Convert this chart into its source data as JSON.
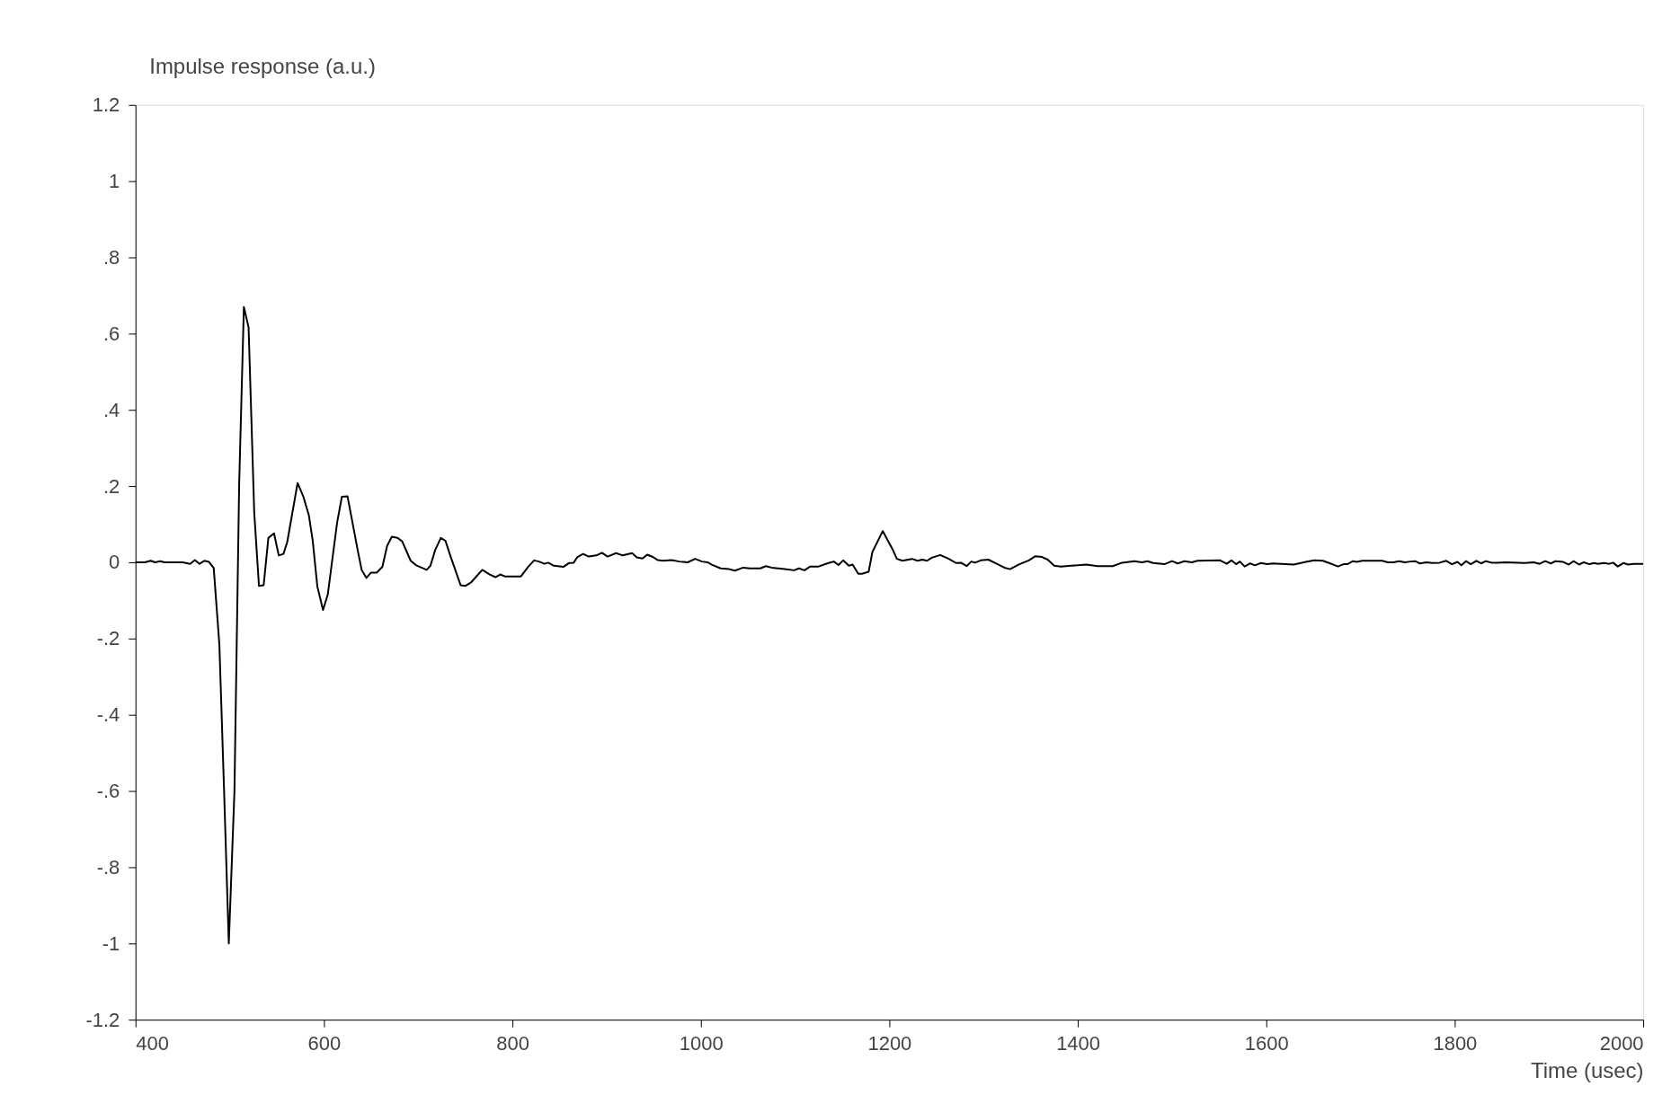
{
  "chart_data": {
    "type": "line",
    "xlabel": "Time (usec)",
    "ylabel": "Impulse response (a.u.)",
    "x": [
      400,
      410,
      416,
      421,
      426,
      431,
      450,
      458,
      463,
      468,
      473,
      478,
      483,
      489,
      494,
      499,
      505,
      510,
      515,
      520,
      526,
      531,
      536,
      541,
      547,
      552,
      557,
      561,
      572,
      578,
      584,
      588,
      593,
      599,
      604,
      614,
      619,
      625,
      636,
      640,
      645,
      650,
      656,
      662,
      667,
      672,
      678,
      683,
      692,
      698,
      709,
      713,
      718,
      724,
      729,
      734,
      745,
      750,
      756,
      768,
      776,
      782,
      787,
      792,
      809,
      817,
      823,
      828,
      834,
      838,
      844,
      854,
      860,
      865,
      869,
      875,
      881,
      889,
      895,
      901,
      910,
      917,
      927,
      932,
      938,
      943,
      949,
      954,
      960,
      969,
      977,
      986,
      994,
      1001,
      1007,
      1012,
      1021,
      1030,
      1036,
      1045,
      1052,
      1063,
      1069,
      1075,
      1089,
      1099,
      1104,
      1110,
      1116,
      1125,
      1134,
      1141,
      1146,
      1151,
      1157,
      1161,
      1167,
      1171,
      1178,
      1182,
      1193,
      1203,
      1208,
      1214,
      1224,
      1230,
      1235,
      1240,
      1245,
      1254,
      1263,
      1271,
      1276,
      1282,
      1287,
      1291,
      1297,
      1305,
      1315,
      1323,
      1328,
      1338,
      1348,
      1355,
      1362,
      1368,
      1375,
      1382,
      1393,
      1400,
      1409,
      1421,
      1437,
      1447,
      1460,
      1468,
      1474,
      1480,
      1492,
      1500,
      1506,
      1513,
      1521,
      1527,
      1551,
      1558,
      1563,
      1568,
      1572,
      1577,
      1583,
      1588,
      1594,
      1601,
      1607,
      1629,
      1642,
      1651,
      1660,
      1668,
      1676,
      1682,
      1686,
      1692,
      1696,
      1702,
      1723,
      1729,
      1735,
      1741,
      1747,
      1753,
      1758,
      1763,
      1770,
      1776,
      1784,
      1791,
      1797,
      1803,
      1807,
      1812,
      1817,
      1823,
      1828,
      1833,
      1839,
      1845,
      1854,
      1874,
      1884,
      1890,
      1896,
      1902,
      1907,
      1915,
      1921,
      1926,
      1932,
      1937,
      1943,
      1948,
      1952,
      1958,
      1964,
      1968,
      1973,
      1979,
      1984,
      1990,
      2000
    ],
    "series": [
      {
        "color": "#000000",
        "values": [
          0,
          0,
          0.004,
          0,
          0.003,
          0,
          0,
          -0.004,
          0.006,
          -0.004,
          0.004,
          0.001,
          -0.015,
          -0.216,
          -0.6,
          -1.0,
          -0.6,
          0.205,
          0.67,
          0.616,
          0.13,
          -0.062,
          -0.06,
          0.064,
          0.076,
          0.018,
          0.022,
          0.053,
          0.208,
          0.173,
          0.123,
          0.058,
          -0.064,
          -0.125,
          -0.085,
          0.105,
          0.172,
          0.173,
          0.029,
          -0.02,
          -0.041,
          -0.027,
          -0.027,
          -0.012,
          0.043,
          0.067,
          0.064,
          0.055,
          0.004,
          -0.008,
          -0.02,
          -0.009,
          0.032,
          0.064,
          0.056,
          0.018,
          -0.06,
          -0.062,
          -0.053,
          -0.02,
          -0.032,
          -0.039,
          -0.032,
          -0.037,
          -0.037,
          -0.011,
          0.005,
          0.002,
          -0.004,
          -0.001,
          -0.009,
          -0.012,
          -0.002,
          -0.001,
          0.014,
          0.022,
          0.015,
          0.018,
          0.025,
          0.015,
          0.024,
          0.018,
          0.024,
          0.013,
          0.01,
          0.02,
          0.014,
          0.006,
          0.004,
          0.006,
          0.002,
          0,
          0.009,
          0.002,
          0,
          -0.007,
          -0.016,
          -0.018,
          -0.022,
          -0.014,
          -0.016,
          -0.016,
          -0.01,
          -0.014,
          -0.018,
          -0.021,
          -0.016,
          -0.021,
          -0.011,
          -0.011,
          -0.003,
          0.002,
          -0.007,
          0.005,
          -0.009,
          -0.006,
          -0.03,
          -0.03,
          -0.025,
          0.027,
          0.082,
          0.036,
          0.009,
          0.004,
          0.009,
          0.004,
          0.007,
          0.004,
          0.012,
          0.019,
          0.009,
          -0.002,
          -0.001,
          -0.01,
          0.002,
          -0.001,
          0.005,
          0.007,
          -0.005,
          -0.015,
          -0.018,
          -0.005,
          0.005,
          0.016,
          0.014,
          0.007,
          -0.009,
          -0.011,
          -0.009,
          -0.008,
          -0.006,
          -0.01,
          -0.01,
          -0.001,
          0.003,
          0,
          0.003,
          -0.002,
          -0.005,
          0.003,
          -0.003,
          0.003,
          0,
          0.004,
          0.005,
          -0.004,
          0.005,
          -0.005,
          0.002,
          -0.011,
          -0.003,
          -0.008,
          -0.002,
          -0.005,
          -0.003,
          -0.006,
          0.001,
          0.005,
          0.004,
          -0.003,
          -0.011,
          -0.005,
          -0.005,
          0.003,
          0.001,
          0.004,
          0.004,
          0,
          0,
          0.003,
          0,
          0.002,
          0.003,
          -0.003,
          0,
          -0.002,
          -0.001,
          0.004,
          -0.005,
          0.001,
          -0.008,
          0.003,
          -0.005,
          0.004,
          -0.003,
          0.003,
          -0.001,
          -0.001,
          0,
          -0.002,
          0,
          -0.004,
          0.003,
          -0.003,
          0.003,
          0.001,
          -0.006,
          0.003,
          -0.006,
          0,
          -0.005,
          -0.002,
          -0.004,
          -0.002,
          -0.004,
          -0.001,
          -0.011,
          -0.002,
          -0.006,
          -0.004,
          -0.004
        ]
      }
    ],
    "xlim": [
      400,
      2000
    ],
    "xticks": [
      400,
      600,
      800,
      1000,
      1200,
      1400,
      1600,
      1800,
      2000
    ],
    "ylim": [
      -1.2,
      1.2
    ],
    "yticks": [
      {
        "value": 1.2,
        "label": "1.2"
      },
      1,
      {
        "value": 0.8,
        "label": ".8"
      },
      {
        "value": 0.6,
        "label": ".6"
      },
      {
        "value": 0.4,
        "label": ".4"
      },
      {
        "value": 0.2,
        "label": ".2"
      },
      0,
      {
        "value": -0.2,
        "label": "-.2"
      },
      {
        "value": -0.4,
        "label": "-.4"
      },
      {
        "value": -0.6,
        "label": "-.6"
      },
      {
        "value": -0.8,
        "label": "-.8"
      },
      {
        "value": -1,
        "label": "-1"
      },
      {
        "value": -1.2,
        "label": "-1.2"
      }
    ],
    "grid": false,
    "line_style": "solid"
  }
}
